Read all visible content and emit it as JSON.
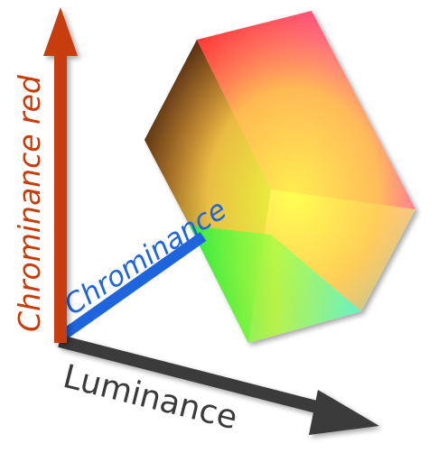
{
  "axes": {
    "red": {
      "label": "Chrominance red",
      "color": "#c83c0a"
    },
    "blue": {
      "label": "Chrominance",
      "color": "#1e64dc"
    },
    "luminance": {
      "label": "Luminance",
      "color": "#3a3a3a"
    }
  },
  "cube_colors": {
    "black": "#000000",
    "red": "#ff0000",
    "magenta": "#ff40ff",
    "white": "#ffffff",
    "cyan": "#00ffff",
    "green": "#00ff40",
    "yellow": "#ffff00"
  }
}
